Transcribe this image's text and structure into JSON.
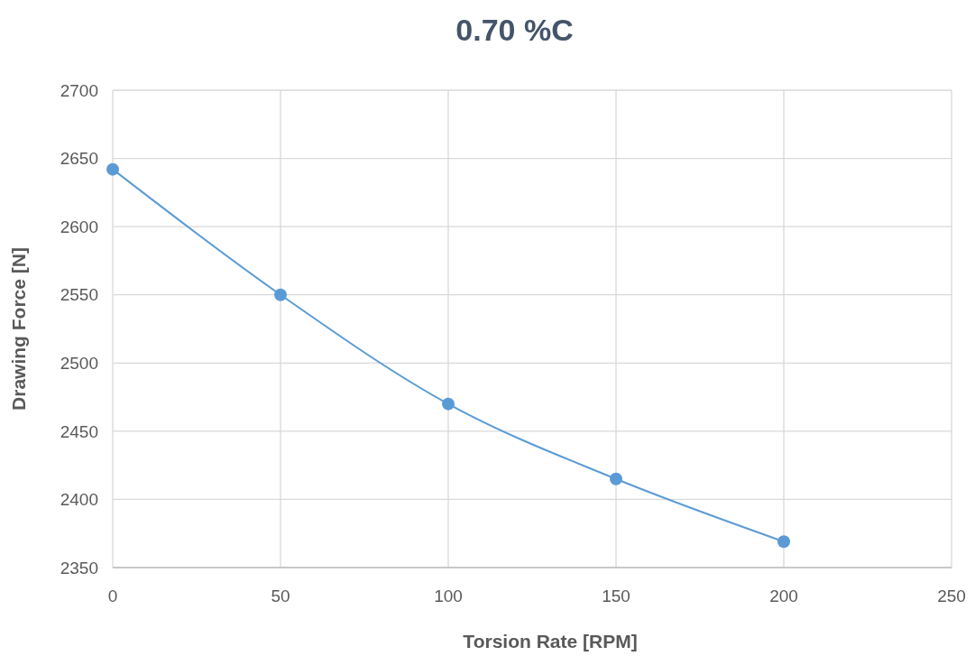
{
  "chart_data": {
    "type": "line",
    "title": "0.70 %C",
    "xlabel": "Torsion Rate [RPM]",
    "ylabel": "Drawing Force [N]",
    "x": [
      0,
      50,
      100,
      150,
      200
    ],
    "series": [
      {
        "color": "#5b9bd5",
        "values": [
          2642,
          2550,
          2470,
          2415,
          2369
        ]
      }
    ],
    "xlim": [
      0,
      250
    ],
    "xticks": [
      0,
      50,
      100,
      150,
      200,
      250
    ],
    "ylim": [
      2350,
      2700
    ],
    "yticks": [
      2350,
      2400,
      2450,
      2500,
      2550,
      2600,
      2650,
      2700
    ],
    "grid": true,
    "marker": "circle",
    "line_style": "solid"
  }
}
